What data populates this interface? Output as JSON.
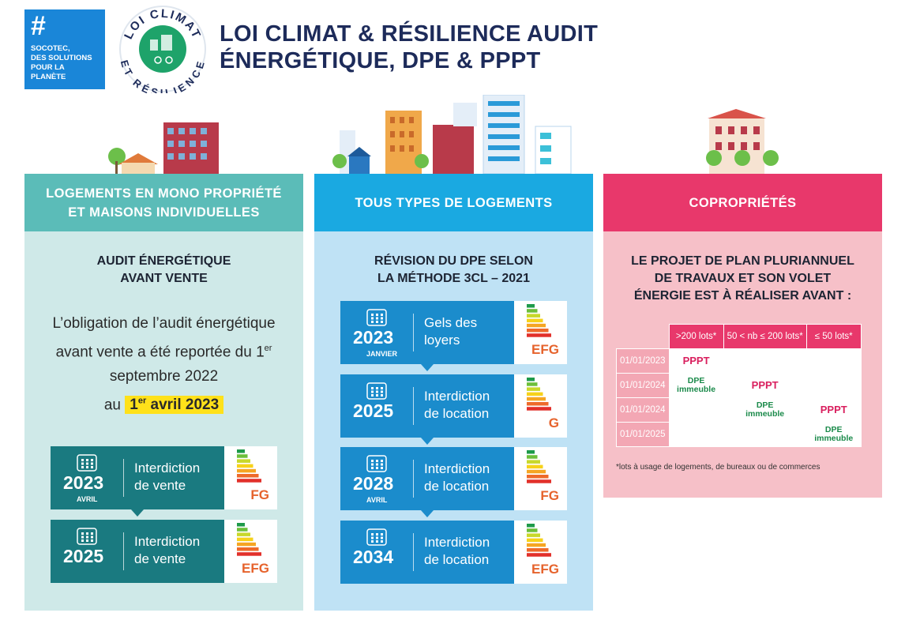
{
  "logo": {
    "hash": "#",
    "lines": [
      "SOCOTEC,",
      "DES SOLUTIONS",
      "POUR LA",
      "PLANÈTE"
    ]
  },
  "badge": {
    "top": "LOI CLIMAT",
    "bottom": "ET RÉSILIENCE"
  },
  "title": [
    "LOI CLIMAT & RÉSILIENCE AUDIT",
    "ÉNERGÉTIQUE, DPE & PPPT"
  ],
  "columns": [
    {
      "header": [
        "LOGEMENTS EN MONO PROPRIÉTÉ",
        "ET MAISONS INDIVIDUELLES"
      ],
      "subtitle": [
        "AUDIT ÉNERGÉTIQUE",
        "AVANT VENTE"
      ],
      "note": {
        "text": "L’obligation de l’audit énergétique avant vente a été reportée du 1",
        "sup": "er",
        "after": " septembre 2022",
        "au": "au",
        "highlight": "1",
        "highlight_sup": "er",
        "highlight_after": " avril 2023"
      },
      "cards": [
        {
          "year": "2023",
          "month": "AVRIL",
          "label": [
            "Interdiction",
            "de vente"
          ],
          "classes": "FG"
        },
        {
          "year": "2025",
          "label": [
            "Interdiction",
            "de vente"
          ],
          "classes": "EFG"
        }
      ]
    },
    {
      "header": [
        "TOUS TYPES DE LOGEMENTS"
      ],
      "subtitle": [
        "RÉVISION DU DPE SELON",
        "LA MÉTHODE 3CL – 2021"
      ],
      "cards": [
        {
          "year": "2023",
          "month": "JANVIER",
          "label": [
            "Gels des",
            "loyers"
          ],
          "classes": "EFG"
        },
        {
          "year": "2025",
          "label": [
            "Interdiction",
            "de location"
          ],
          "classes": "G"
        },
        {
          "year": "2028",
          "month": "AVRIL",
          "label": [
            "Interdiction",
            "de location"
          ],
          "classes": "FG"
        },
        {
          "year": "2034",
          "label": [
            "Interdiction",
            "de location"
          ],
          "classes": "EFG"
        }
      ]
    },
    {
      "header": [
        "COPROPRIÉTÉS"
      ],
      "subtitle": [
        "LE PROJET DE PLAN PLURIANNUEL",
        "DE TRAVAUX ET SON VOLET",
        "ÉNERGIE EST À RÉALISER AVANT :"
      ],
      "table": {
        "header": [
          ">200 lots*",
          "50 < nb ≤ 200 lots*",
          "≤ 50 lots*"
        ],
        "rows": [
          [
            "01/01/2023",
            "PPPT",
            null,
            null
          ],
          [
            "01/01/2024",
            "DPE immeuble",
            "PPPT",
            null
          ],
          [
            "01/01/2024",
            null,
            "DPE immeuble",
            "PPPT"
          ],
          [
            "01/01/2025",
            null,
            null,
            "DPE immeuble"
          ]
        ]
      },
      "footnote": "*lots à usage de logements, de bureaux ou de commerces"
    }
  ]
}
